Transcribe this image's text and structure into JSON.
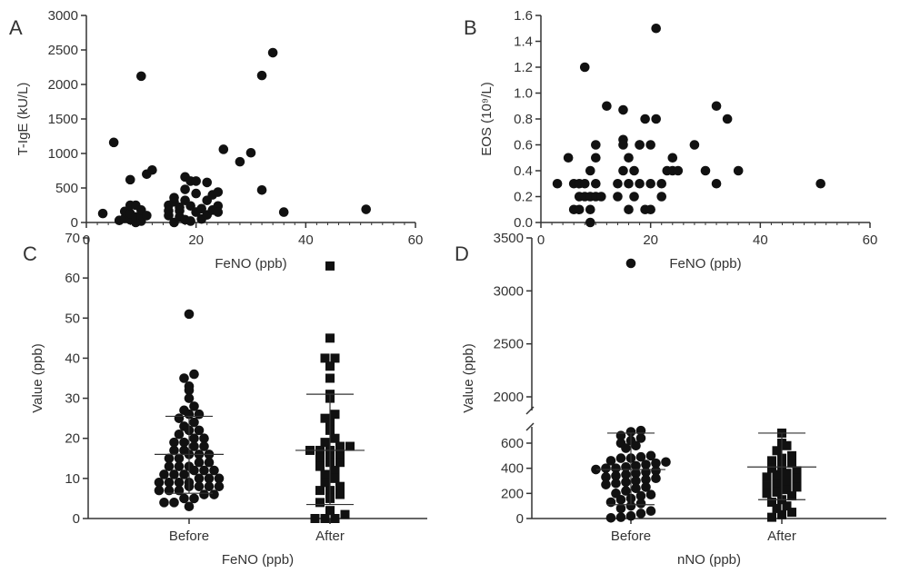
{
  "chart_data": [
    {
      "panel": "A",
      "type": "scatter",
      "xlabel": "FeNO (ppb)",
      "ylabel": "T-IgE (kU/L)",
      "xlim": [
        0,
        60
      ],
      "ylim": [
        0,
        3000
      ],
      "xticks": [
        "0",
        "20",
        "40",
        "60"
      ],
      "yticks": [
        "0",
        "500",
        "1000",
        "1500",
        "2000",
        "2500",
        "3000"
      ],
      "points": [
        [
          3,
          130
        ],
        [
          5,
          1160
        ],
        [
          6,
          30
        ],
        [
          7,
          60
        ],
        [
          7,
          160
        ],
        [
          8,
          40
        ],
        [
          8,
          130
        ],
        [
          8,
          250
        ],
        [
          8,
          620
        ],
        [
          9,
          0
        ],
        [
          9,
          80
        ],
        [
          9,
          250
        ],
        [
          10,
          20
        ],
        [
          10,
          100
        ],
        [
          10,
          180
        ],
        [
          10,
          2120
        ],
        [
          11,
          700
        ],
        [
          11,
          100
        ],
        [
          12,
          760
        ],
        [
          15,
          100
        ],
        [
          15,
          250
        ],
        [
          15,
          170
        ],
        [
          16,
          300
        ],
        [
          16,
          360
        ],
        [
          16,
          0
        ],
        [
          17,
          220
        ],
        [
          17,
          170
        ],
        [
          17,
          80
        ],
        [
          18,
          320
        ],
        [
          18,
          480
        ],
        [
          18,
          40
        ],
        [
          18,
          660
        ],
        [
          19,
          240
        ],
        [
          19,
          600
        ],
        [
          19,
          20
        ],
        [
          20,
          150
        ],
        [
          20,
          600
        ],
        [
          20,
          420
        ],
        [
          21,
          200
        ],
        [
          21,
          50
        ],
        [
          22,
          320
        ],
        [
          22,
          580
        ],
        [
          22,
          110
        ],
        [
          23,
          180
        ],
        [
          23,
          400
        ],
        [
          24,
          240
        ],
        [
          24,
          440
        ],
        [
          24,
          150
        ],
        [
          25,
          1060
        ],
        [
          28,
          880
        ],
        [
          30,
          1010
        ],
        [
          32,
          2130
        ],
        [
          32,
          470
        ],
        [
          34,
          2460
        ],
        [
          36,
          150
        ],
        [
          51,
          190
        ]
      ]
    },
    {
      "panel": "B",
      "type": "scatter",
      "xlabel": "FeNO (ppb)",
      "ylabel": "EOS (10⁹/L)",
      "xlim": [
        0,
        60
      ],
      "ylim": [
        0,
        1.6
      ],
      "xticks": [
        "0",
        "20",
        "40",
        "60"
      ],
      "yticks": [
        "0.0",
        "0.2",
        "0.4",
        "0.6",
        "0.8",
        "1.0",
        "1.2",
        "1.4",
        "1.6"
      ],
      "points": [
        [
          3,
          0.3
        ],
        [
          5,
          0.5
        ],
        [
          6,
          0.3
        ],
        [
          6,
          0.1
        ],
        [
          7,
          0.2
        ],
        [
          7,
          0.3
        ],
        [
          7,
          0.1
        ],
        [
          8,
          1.2
        ],
        [
          8,
          0.3
        ],
        [
          8,
          0.2
        ],
        [
          9,
          0.4
        ],
        [
          9,
          0.2
        ],
        [
          9,
          0.1
        ],
        [
          9,
          0.0
        ],
        [
          10,
          0.6
        ],
        [
          10,
          0.5
        ],
        [
          10,
          0.3
        ],
        [
          10,
          0.2
        ],
        [
          11,
          0.2
        ],
        [
          12,
          0.9
        ],
        [
          14,
          0.3
        ],
        [
          14,
          0.2
        ],
        [
          15,
          0.87
        ],
        [
          15,
          0.64
        ],
        [
          15,
          0.6
        ],
        [
          15,
          0.4
        ],
        [
          16,
          0.3
        ],
        [
          16,
          0.5
        ],
        [
          16,
          0.1
        ],
        [
          17,
          0.2
        ],
        [
          17,
          0.4
        ],
        [
          18,
          0.6
        ],
        [
          18,
          0.6
        ],
        [
          18,
          0.3
        ],
        [
          19,
          0.8
        ],
        [
          19,
          0.1
        ],
        [
          20,
          0.3
        ],
        [
          20,
          0.6
        ],
        [
          20,
          0.1
        ],
        [
          21,
          1.5
        ],
        [
          21,
          0.8
        ],
        [
          22,
          0.3
        ],
        [
          22,
          0.2
        ],
        [
          23,
          0.4
        ],
        [
          24,
          0.5
        ],
        [
          24,
          0.4
        ],
        [
          25,
          0.4
        ],
        [
          28,
          0.6
        ],
        [
          30,
          0.4
        ],
        [
          32,
          0.9
        ],
        [
          32,
          0.3
        ],
        [
          34,
          0.8
        ],
        [
          36,
          0.4
        ],
        [
          51,
          0.3
        ]
      ]
    },
    {
      "panel": "C",
      "type": "scatter",
      "xlabel": "FeNO (ppb)",
      "ylabel": "Value (ppb)",
      "categories": [
        "Before",
        "After"
      ],
      "ylim": [
        0,
        70
      ],
      "yticks": [
        "0",
        "10",
        "20",
        "30",
        "40",
        "50",
        "60",
        "70"
      ],
      "series": [
        {
          "marker": "circle",
          "mean": 16,
          "sd_low": 6.3,
          "sd_high": 25.5,
          "values": [
            51,
            36,
            35,
            33,
            32,
            30,
            28,
            27,
            26,
            26,
            25,
            24,
            23,
            22,
            22,
            21,
            20,
            20,
            19,
            19,
            18,
            18,
            17,
            17,
            16,
            16,
            16,
            15,
            15,
            14,
            14,
            13,
            13,
            13,
            12,
            12,
            12,
            11,
            11,
            11,
            10,
            10,
            10,
            9,
            9,
            9,
            9,
            8,
            8,
            8,
            8,
            7,
            7,
            7,
            6,
            6,
            5,
            5,
            4,
            4,
            3
          ]
        },
        {
          "marker": "square",
          "mean": 17,
          "sd_low": 3.5,
          "sd_high": 31,
          "values": [
            63,
            45,
            40,
            40,
            38,
            35,
            31,
            30,
            26,
            25,
            24,
            22,
            20,
            19,
            18,
            18,
            17,
            17,
            17,
            16,
            15,
            15,
            14,
            14,
            13,
            12,
            11,
            10,
            9,
            8,
            7,
            7,
            6,
            5,
            4,
            2,
            1,
            0,
            0,
            0
          ]
        }
      ]
    },
    {
      "panel": "D",
      "type": "scatter",
      "xlabel": "nNO (ppb)",
      "ylabel": "Value (ppb)",
      "categories": [
        "Before",
        "After"
      ],
      "y_axis_break": [
        700,
        2000
      ],
      "yticks": [
        "0",
        "200",
        "400",
        "600",
        "2000",
        "2500",
        "3000",
        "3500"
      ],
      "series": [
        {
          "marker": "circle",
          "mean": 390,
          "sd_low": 110,
          "sd_high": 680,
          "values": [
            3260,
            700,
            690,
            660,
            640,
            620,
            600,
            580,
            560,
            500,
            490,
            480,
            480,
            460,
            450,
            440,
            430,
            420,
            410,
            400,
            400,
            390,
            380,
            370,
            360,
            350,
            340,
            330,
            320,
            310,
            300,
            290,
            280,
            270,
            250,
            240,
            220,
            200,
            190,
            180,
            160,
            150,
            130,
            120,
            100,
            80,
            60,
            40,
            20,
            10,
            5
          ]
        },
        {
          "marker": "square",
          "mean": 410,
          "sd_low": 150,
          "sd_high": 680,
          "values": [
            680,
            600,
            580,
            540,
            500,
            480,
            460,
            440,
            420,
            400,
            380,
            360,
            350,
            330,
            320,
            300,
            280,
            260,
            250,
            230,
            210,
            200,
            180,
            150,
            130,
            100,
            80,
            50,
            30,
            10
          ]
        }
      ]
    }
  ]
}
